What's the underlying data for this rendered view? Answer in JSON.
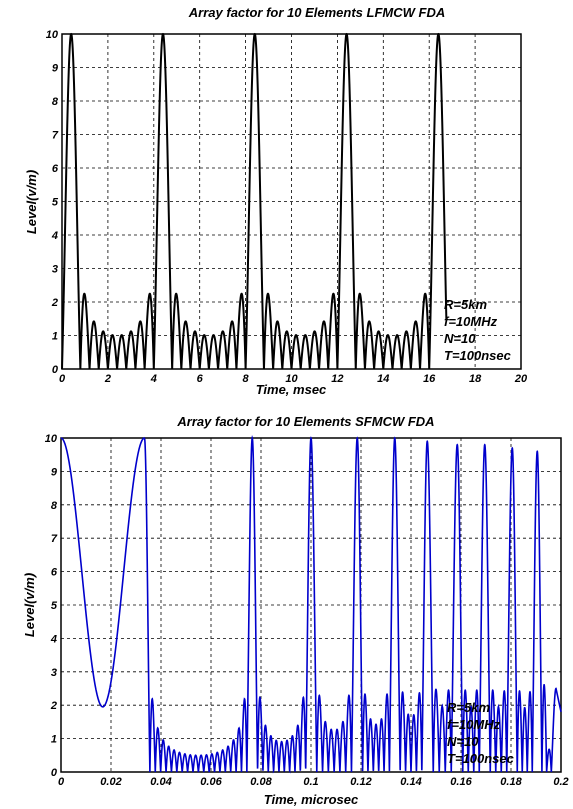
{
  "chart_data": [
    {
      "type": "line",
      "title": "Array factor for 10 Elements LFMCW FDA",
      "xlabel": "Time, msec",
      "ylabel": "Level(v/m)",
      "xlim": [
        0,
        20
      ],
      "ylim": [
        0,
        10
      ],
      "xticks": [
        "0",
        "2",
        "4",
        "6",
        "8",
        "10",
        "12",
        "14",
        "16",
        "18",
        "20"
      ],
      "yticks": [
        "0",
        "1",
        "2",
        "3",
        "4",
        "5",
        "6",
        "7",
        "8",
        "9",
        "10"
      ],
      "grid": true,
      "color": "#000000",
      "series": [
        {
          "x_start": 0,
          "x_end": 16.75,
          "main_peaks_x": [
            0.4,
            4.4,
            8.4,
            12.4,
            16.4
          ],
          "main_peak_value": 10,
          "first_sidelobe_value": 2.2,
          "sidelobe_floor_value": 1.0,
          "period": 4,
          "lobes_per_period": 10
        }
      ],
      "annotations": [
        "R=5km",
        "f=10MHz",
        "N=10",
        "T=100nsec"
      ]
    },
    {
      "type": "line",
      "title": "Array factor for 10 Elements SFMCW FDA",
      "xlabel": "Time, microsec",
      "ylabel": "Level(v/m)",
      "xlim": [
        0,
        0.2
      ],
      "ylim": [
        0,
        10
      ],
      "xticks": [
        "0",
        "0.02",
        "0.04",
        "0.06",
        "0.08",
        "0.1",
        "0.12",
        "0.14",
        "0.16",
        "0.18",
        "0.2"
      ],
      "yticks": [
        "0",
        "1",
        "2",
        "3",
        "4",
        "5",
        "6",
        "7",
        "8",
        "9",
        "10"
      ],
      "grid": true,
      "color": "#0000cc",
      "series": [
        {
          "start_value": 10,
          "local_min": [
            0.0167,
            1.95
          ],
          "main_peaks_x": [
            0.0334,
            0.0765,
            0.1,
            0.1185,
            0.1335,
            0.1465,
            0.1585,
            0.1695,
            0.1805,
            0.1905
          ],
          "main_peaks_y": [
            10,
            10,
            10,
            10,
            10,
            9.9,
            9.8,
            9.8,
            9.7,
            9.6
          ],
          "tail_values": [
            [
              0.198,
              2.5
            ],
            [
              0.2,
              1.8
            ]
          ]
        }
      ],
      "annotations": [
        "R=5km",
        "f=10MHz",
        "N=10",
        "T=100nsec"
      ]
    }
  ]
}
